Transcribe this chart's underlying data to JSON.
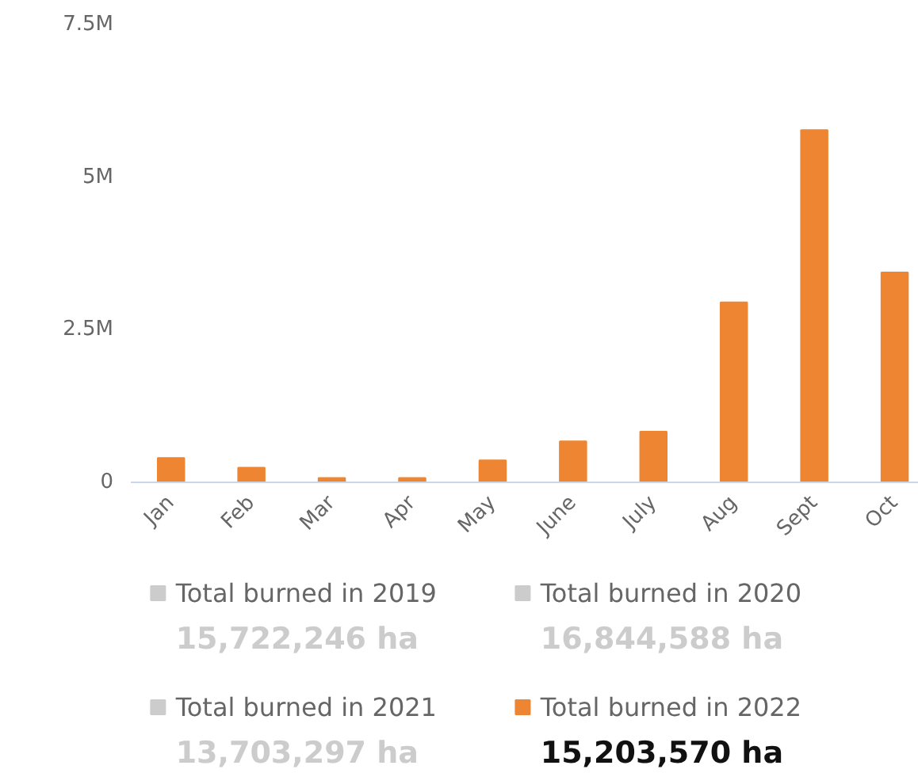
{
  "chart_data": {
    "type": "bar",
    "categories": [
      "Jan",
      "Feb",
      "Mar",
      "Apr",
      "May",
      "June",
      "July",
      "Aug",
      "Sept",
      "Oct"
    ],
    "series": [
      {
        "name": "Total burned in 2019",
        "color": "#cccccc",
        "values": [
          null,
          null,
          null,
          null,
          null,
          null,
          null,
          null,
          null,
          null
        ]
      },
      {
        "name": "Total burned in 2020",
        "color": "#cccccc",
        "values": [
          null,
          null,
          null,
          null,
          null,
          null,
          null,
          null,
          null,
          null
        ]
      },
      {
        "name": "Total burned in 2021",
        "color": "#cccccc",
        "values": [
          null,
          null,
          null,
          null,
          null,
          null,
          null,
          null,
          null,
          null
        ]
      },
      {
        "name": "Total burned in 2022",
        "color": "#ed8532",
        "values": [
          400000,
          240000,
          70000,
          70000,
          360000,
          670000,
          830000,
          2950000,
          5770000,
          3440000
        ]
      }
    ],
    "annotations": [
      "15,722,246 ha",
      "16,844,588 ha",
      "13,703,297 ha",
      "15,203,570 ha"
    ],
    "ylim": [
      0,
      7500000
    ],
    "yticks": [
      {
        "value": 0,
        "label": "0"
      },
      {
        "value": 2500000,
        "label": "2.5M"
      },
      {
        "value": 5000000,
        "label": "5M"
      },
      {
        "value": 7500000,
        "label": "7.5M"
      }
    ],
    "grid": false,
    "legend": "bottom"
  }
}
